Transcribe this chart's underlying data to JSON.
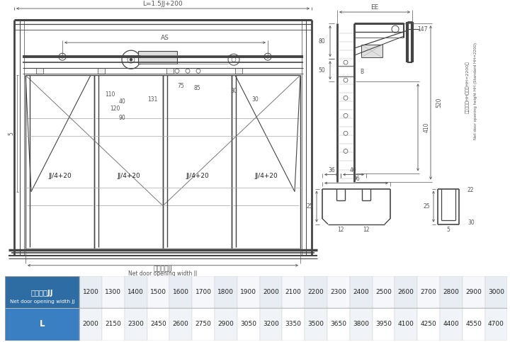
{
  "bg_color": "#ffffff",
  "table_header_bg": "#2e6da4",
  "table_row2_bg": "#3a7fc1",
  "table_header_text_color": "#ffffff",
  "table_border_color": "#999999",
  "diagram_line_color": "#444444",
  "dim_line_color": "#666666",
  "text_color": "#222222",
  "row1_label_cn": "净开门宽JJ",
  "row1_label_en": "Net door opening width JJ",
  "row1_values": [
    "1200",
    "1300",
    "1400",
    "1500",
    "1600",
    "1700",
    "1800",
    "1900",
    "2000",
    "2100",
    "2200",
    "2300",
    "2400",
    "2500",
    "2600",
    "2700",
    "2800",
    "2900",
    "3000"
  ],
  "row2_label": "L",
  "row2_values": [
    "2000",
    "2150",
    "2300",
    "2450",
    "2600",
    "2750",
    "2900",
    "3050",
    "3200",
    "3350",
    "3500",
    "3650",
    "3800",
    "3950",
    "4100",
    "4250",
    "4400",
    "4550",
    "4700"
  ],
  "cell_fontsize": 6.5,
  "lc": "#444444",
  "dc": "#555555"
}
